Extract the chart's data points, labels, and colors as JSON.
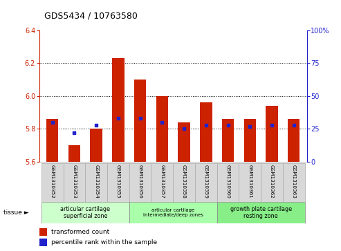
{
  "title": "GDS5434 / 10763580",
  "samples": [
    "GSM1310352",
    "GSM1310353",
    "GSM1310354",
    "GSM1310355",
    "GSM1310356",
    "GSM1310357",
    "GSM1310358",
    "GSM1310359",
    "GSM1310360",
    "GSM1310361",
    "GSM1310362",
    "GSM1310363"
  ],
  "red_values": [
    5.86,
    5.7,
    5.8,
    6.23,
    6.1,
    6.0,
    5.84,
    5.96,
    5.86,
    5.86,
    5.94,
    5.86
  ],
  "blue_values": [
    30,
    22,
    28,
    33,
    33,
    30,
    25,
    28,
    28,
    27,
    28,
    28
  ],
  "ylim_left": [
    5.6,
    6.4
  ],
  "ylim_right": [
    0,
    100
  ],
  "yticks_left": [
    5.6,
    5.8,
    6.0,
    6.2,
    6.4
  ],
  "yticks_right": [
    0,
    25,
    50,
    75,
    100
  ],
  "bar_color": "#cc2200",
  "dot_color": "#2222cc",
  "tissue_groups": [
    {
      "label": "articular cartilage\nsuperficial zone",
      "start": 0,
      "end": 4,
      "color": "#ccffcc"
    },
    {
      "label": "articular cartilage\nintermediate/deep zones",
      "start": 4,
      "end": 8,
      "color": "#aaffaa"
    },
    {
      "label": "growth plate cartilage\nresting zone",
      "start": 8,
      "end": 12,
      "color": "#88ee88"
    }
  ],
  "legend_red": "transformed count",
  "legend_blue": "percentile rank within the sample",
  "left_axis_color": "#cc2200",
  "right_axis_color": "#2222cc",
  "bar_width": 0.55,
  "base_value": 5.6
}
